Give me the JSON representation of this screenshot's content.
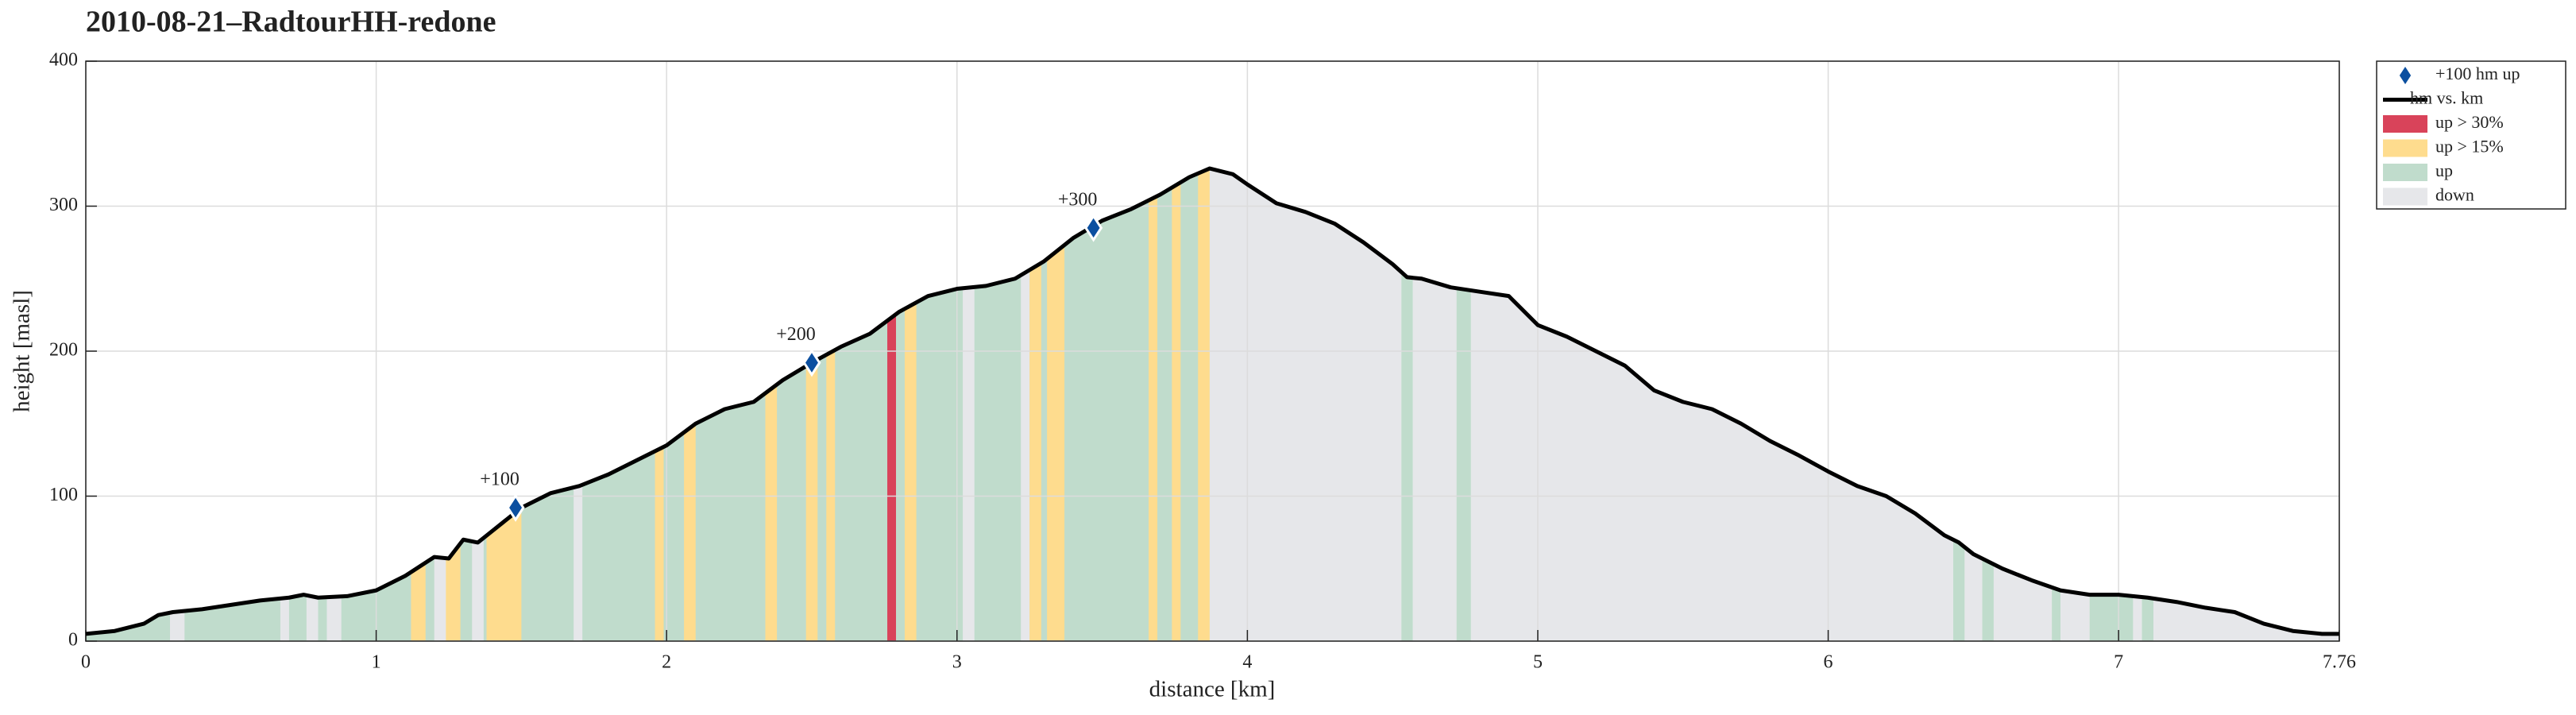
{
  "chart_data": {
    "type": "area",
    "title": "2010-08-21–RadtourHH-redone",
    "xlabel": "distance [km]",
    "ylabel": "height [masl]",
    "xlim": [
      0,
      7.76
    ],
    "ylim": [
      0,
      400
    ],
    "xticks": [
      0,
      1,
      2,
      3,
      4,
      5,
      6,
      7,
      7.76
    ],
    "yticks": [
      0,
      100,
      200,
      300,
      400
    ],
    "grid": true,
    "legend": "outside-top-right",
    "bands": [
      {
        "name": "up",
        "color": "#c0dccc",
        "intervals": [
          [
            0,
            3.87
          ],
          [
            4.53,
            4.57
          ],
          [
            4.72,
            4.77
          ],
          [
            6.43,
            6.47
          ],
          [
            6.53,
            6.57
          ],
          [
            6.77,
            6.8
          ],
          [
            6.9,
            7.05
          ],
          [
            7.08,
            7.12
          ]
        ]
      },
      {
        "name": "down",
        "color": "#e6e7ea",
        "intervals": [
          [
            0.29,
            0.34
          ],
          [
            0.67,
            0.7
          ],
          [
            0.76,
            0.8
          ],
          [
            0.83,
            0.88
          ],
          [
            1.2,
            1.25
          ],
          [
            1.33,
            1.37
          ],
          [
            1.68,
            1.71
          ],
          [
            3.02,
            3.06
          ],
          [
            3.22,
            3.25
          ],
          [
            3.87,
            4.53
          ],
          [
            4.57,
            4.72
          ],
          [
            4.77,
            6.43
          ],
          [
            6.47,
            6.53
          ],
          [
            6.57,
            6.77
          ],
          [
            6.8,
            6.9
          ],
          [
            7.05,
            7.08
          ],
          [
            7.12,
            7.76
          ]
        ]
      },
      {
        "name": "up > 15%",
        "color": "#fedc8e",
        "intervals": [
          [
            1.12,
            1.17
          ],
          [
            1.24,
            1.29
          ],
          [
            1.38,
            1.5
          ],
          [
            1.96,
            1.99
          ],
          [
            2.06,
            2.1
          ],
          [
            2.34,
            2.38
          ],
          [
            2.48,
            2.52
          ],
          [
            2.55,
            2.58
          ],
          [
            2.82,
            2.86
          ],
          [
            3.25,
            3.29
          ],
          [
            3.31,
            3.37
          ],
          [
            3.66,
            3.69
          ],
          [
            3.74,
            3.77
          ],
          [
            3.83,
            3.87
          ]
        ]
      },
      {
        "name": "up > 30%",
        "color": "#d9435a",
        "intervals": [
          [
            2.76,
            2.79
          ]
        ]
      }
    ],
    "profile": {
      "name": "hm vs. km",
      "color": "#000000",
      "x": [
        0,
        0.1,
        0.2,
        0.25,
        0.3,
        0.4,
        0.5,
        0.6,
        0.7,
        0.75,
        0.8,
        0.9,
        1.0,
        1.1,
        1.2,
        1.25,
        1.3,
        1.35,
        1.4,
        1.5,
        1.6,
        1.7,
        1.8,
        1.9,
        2.0,
        2.1,
        2.2,
        2.3,
        2.4,
        2.5,
        2.6,
        2.7,
        2.8,
        2.9,
        3.0,
        3.1,
        3.2,
        3.3,
        3.4,
        3.5,
        3.6,
        3.7,
        3.8,
        3.87,
        3.95,
        4.0,
        4.1,
        4.2,
        4.3,
        4.4,
        4.5,
        4.55,
        4.6,
        4.7,
        4.8,
        4.9,
        5.0,
        5.1,
        5.2,
        5.3,
        5.4,
        5.5,
        5.6,
        5.7,
        5.8,
        5.9,
        6.0,
        6.1,
        6.2,
        6.3,
        6.4,
        6.45,
        6.5,
        6.6,
        6.7,
        6.8,
        6.9,
        7.0,
        7.1,
        7.2,
        7.3,
        7.4,
        7.5,
        7.6,
        7.7,
        7.76
      ],
      "values": [
        5,
        7,
        12,
        18,
        20,
        22,
        25,
        28,
        30,
        32,
        30,
        31,
        35,
        45,
        58,
        57,
        70,
        68,
        76,
        92,
        102,
        107,
        115,
        125,
        135,
        150,
        160,
        165,
        180,
        192,
        203,
        212,
        227,
        238,
        243,
        245,
        250,
        262,
        278,
        290,
        298,
        308,
        320,
        326,
        322,
        315,
        302,
        296,
        288,
        275,
        260,
        251,
        250,
        244,
        241,
        238,
        218,
        210,
        200,
        190,
        173,
        165,
        160,
        150,
        138,
        128,
        117,
        107,
        100,
        88,
        73,
        68,
        60,
        50,
        42,
        35,
        32,
        32,
        30,
        27,
        23,
        20,
        12,
        7,
        5,
        5
      ]
    },
    "markers": {
      "name": "+100 hm up",
      "color": "#0b4fa0",
      "x": [
        1.48,
        2.5,
        3.47
      ],
      "values": [
        92,
        192,
        285
      ],
      "annotations": [
        "+100",
        "+200",
        "+300"
      ]
    }
  }
}
